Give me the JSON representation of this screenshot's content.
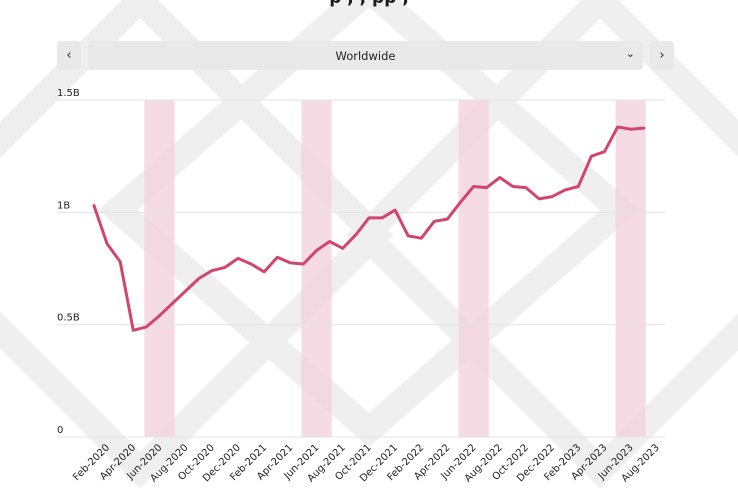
{
  "header": {
    "partial_title": "p , , pp ,",
    "prev_icon": "chevron-left-icon",
    "next_icon": "chevron-right-icon",
    "region": "Worldwide",
    "dropdown_icon": "chevron-down-icon"
  },
  "colors": {
    "line": "#d1456f",
    "shade": "#f3d3dd",
    "grid": "#e3e3e3",
    "control_bg": "#e9e9e9"
  },
  "chart_data": {
    "type": "line",
    "title": "",
    "xlabel": "",
    "ylabel": "",
    "ylim": [
      0,
      1500000000
    ],
    "y_ticks": [
      {
        "value": 0,
        "label": "0"
      },
      {
        "value": 500000000,
        "label": "0.5B"
      },
      {
        "value": 1000000000,
        "label": "1B"
      },
      {
        "value": 1500000000,
        "label": "1.5B"
      }
    ],
    "x_tick_labels": [
      "Feb-2020",
      "Apr-2020",
      "Jun-2020",
      "Aug-2020",
      "Oct-2020",
      "Dec-2020",
      "Feb-2021",
      "Apr-2021",
      "Jun-2021",
      "Aug-2021",
      "Oct-2021",
      "Dec-2021",
      "Feb-2022",
      "Apr-2022",
      "Jun-2022",
      "Aug-2022",
      "Oct-2022",
      "Dec-2022",
      "Feb-2023",
      "Apr-2023",
      "Jun-2023",
      "Aug-2023"
    ],
    "x": [
      "Feb-2020",
      "Mar-2020",
      "Apr-2020",
      "May-2020",
      "Jun-2020",
      "Jul-2020",
      "Aug-2020",
      "Sep-2020",
      "Oct-2020",
      "Nov-2020",
      "Dec-2020",
      "Jan-2021",
      "Feb-2021",
      "Mar-2021",
      "Apr-2021",
      "May-2021",
      "Jun-2021",
      "Jul-2021",
      "Aug-2021",
      "Sep-2021",
      "Oct-2021",
      "Nov-2021",
      "Dec-2021",
      "Jan-2022",
      "Feb-2022",
      "Mar-2022",
      "Apr-2022",
      "May-2022",
      "Jun-2022",
      "Jul-2022",
      "Aug-2022",
      "Sep-2022",
      "Oct-2022",
      "Nov-2022",
      "Dec-2022",
      "Jan-2023",
      "Feb-2023",
      "Mar-2023",
      "Apr-2023",
      "May-2023",
      "Jun-2023",
      "Jul-2023",
      "Aug-2023"
    ],
    "series": [
      {
        "values": [
          1030000000,
          860000000,
          780000000,
          475000000,
          490000000,
          540000000,
          595000000,
          650000000,
          705000000,
          740000000,
          755000000,
          795000000,
          770000000,
          735000000,
          800000000,
          775000000,
          770000000,
          830000000,
          870000000,
          840000000,
          900000000,
          975000000,
          975000000,
          1010000000,
          895000000,
          885000000,
          960000000,
          970000000,
          1045000000,
          1115000000,
          1110000000,
          1155000000,
          1115000000,
          1110000000,
          1060000000,
          1070000000,
          1100000000,
          1115000000,
          1250000000,
          1270000000,
          1380000000,
          1370000000,
          1375000000
        ]
      }
    ],
    "shaded_periods": [
      {
        "start": "Jun-2020",
        "end": "Aug-2020"
      },
      {
        "start": "Jun-2021",
        "end": "Aug-2021"
      },
      {
        "start": "Jun-2022",
        "end": "Aug-2022"
      },
      {
        "start": "Jun-2023",
        "end": "Aug-2023"
      }
    ],
    "grid": true,
    "legend": "none"
  }
}
